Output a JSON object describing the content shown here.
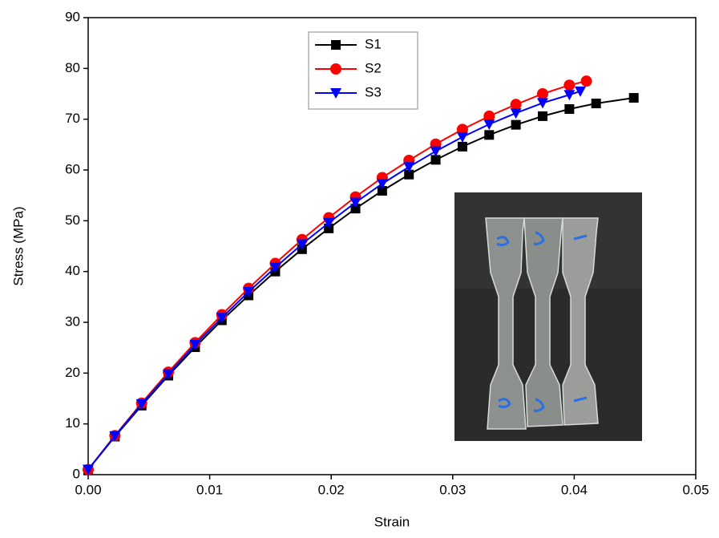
{
  "chart_data": {
    "type": "line",
    "x_label": "Strain",
    "y_label": "Stress (MPa)",
    "xlim": [
      0,
      0.05
    ],
    "ylim": [
      0,
      90
    ],
    "xticks": [
      {
        "value": 0,
        "label": "0.00"
      },
      0.01,
      0.02,
      0.03,
      0.04,
      0.05
    ],
    "yticks": [
      0,
      10,
      20,
      30,
      40,
      50,
      60,
      70,
      80,
      90
    ],
    "legend": "top-center",
    "series": [
      {
        "name": "S1",
        "color": "#000000",
        "marker": "square",
        "x": [
          0,
          0.0022,
          0.0044,
          0.0066,
          0.0088,
          0.011,
          0.0132,
          0.0154,
          0.0176,
          0.0198,
          0.022,
          0.0242,
          0.0264,
          0.0286,
          0.0308,
          0.033,
          0.0352,
          0.0374,
          0.0396,
          0.0418,
          0.0449
        ],
        "values": [
          1.0,
          7.5,
          13.6,
          19.5,
          25.1,
          30.4,
          35.3,
          40.0,
          44.4,
          48.5,
          52.4,
          55.9,
          59.1,
          62.0,
          64.6,
          66.9,
          68.9,
          70.6,
          72.0,
          73.1,
          74.2
        ]
      },
      {
        "name": "S2",
        "color": "#ff0000",
        "marker": "circle",
        "x": [
          0,
          0.0022,
          0.0044,
          0.0066,
          0.0088,
          0.011,
          0.0132,
          0.0154,
          0.0176,
          0.0198,
          0.022,
          0.0242,
          0.0264,
          0.0286,
          0.0308,
          0.033,
          0.0352,
          0.0374,
          0.0396,
          0.041
        ],
        "values": [
          1.0,
          7.7,
          14.1,
          20.2,
          26.0,
          31.5,
          36.7,
          41.6,
          46.3,
          50.6,
          54.7,
          58.5,
          61.9,
          65.1,
          68.0,
          70.6,
          72.9,
          75.0,
          76.7,
          77.5
        ]
      },
      {
        "name": "S3",
        "color": "#0000ff",
        "marker": "triangle-down",
        "x": [
          0,
          0.0022,
          0.0044,
          0.0066,
          0.0088,
          0.011,
          0.0132,
          0.0154,
          0.0176,
          0.0198,
          0.022,
          0.0242,
          0.0264,
          0.0286,
          0.0308,
          0.033,
          0.0352,
          0.0374,
          0.0396,
          0.0405
        ],
        "values": [
          1.0,
          7.6,
          13.9,
          19.8,
          25.6,
          30.9,
          36.0,
          40.8,
          45.4,
          49.6,
          53.6,
          57.3,
          60.6,
          63.7,
          66.5,
          69.0,
          71.2,
          73.2,
          74.8,
          75.5
        ]
      }
    ]
  }
}
